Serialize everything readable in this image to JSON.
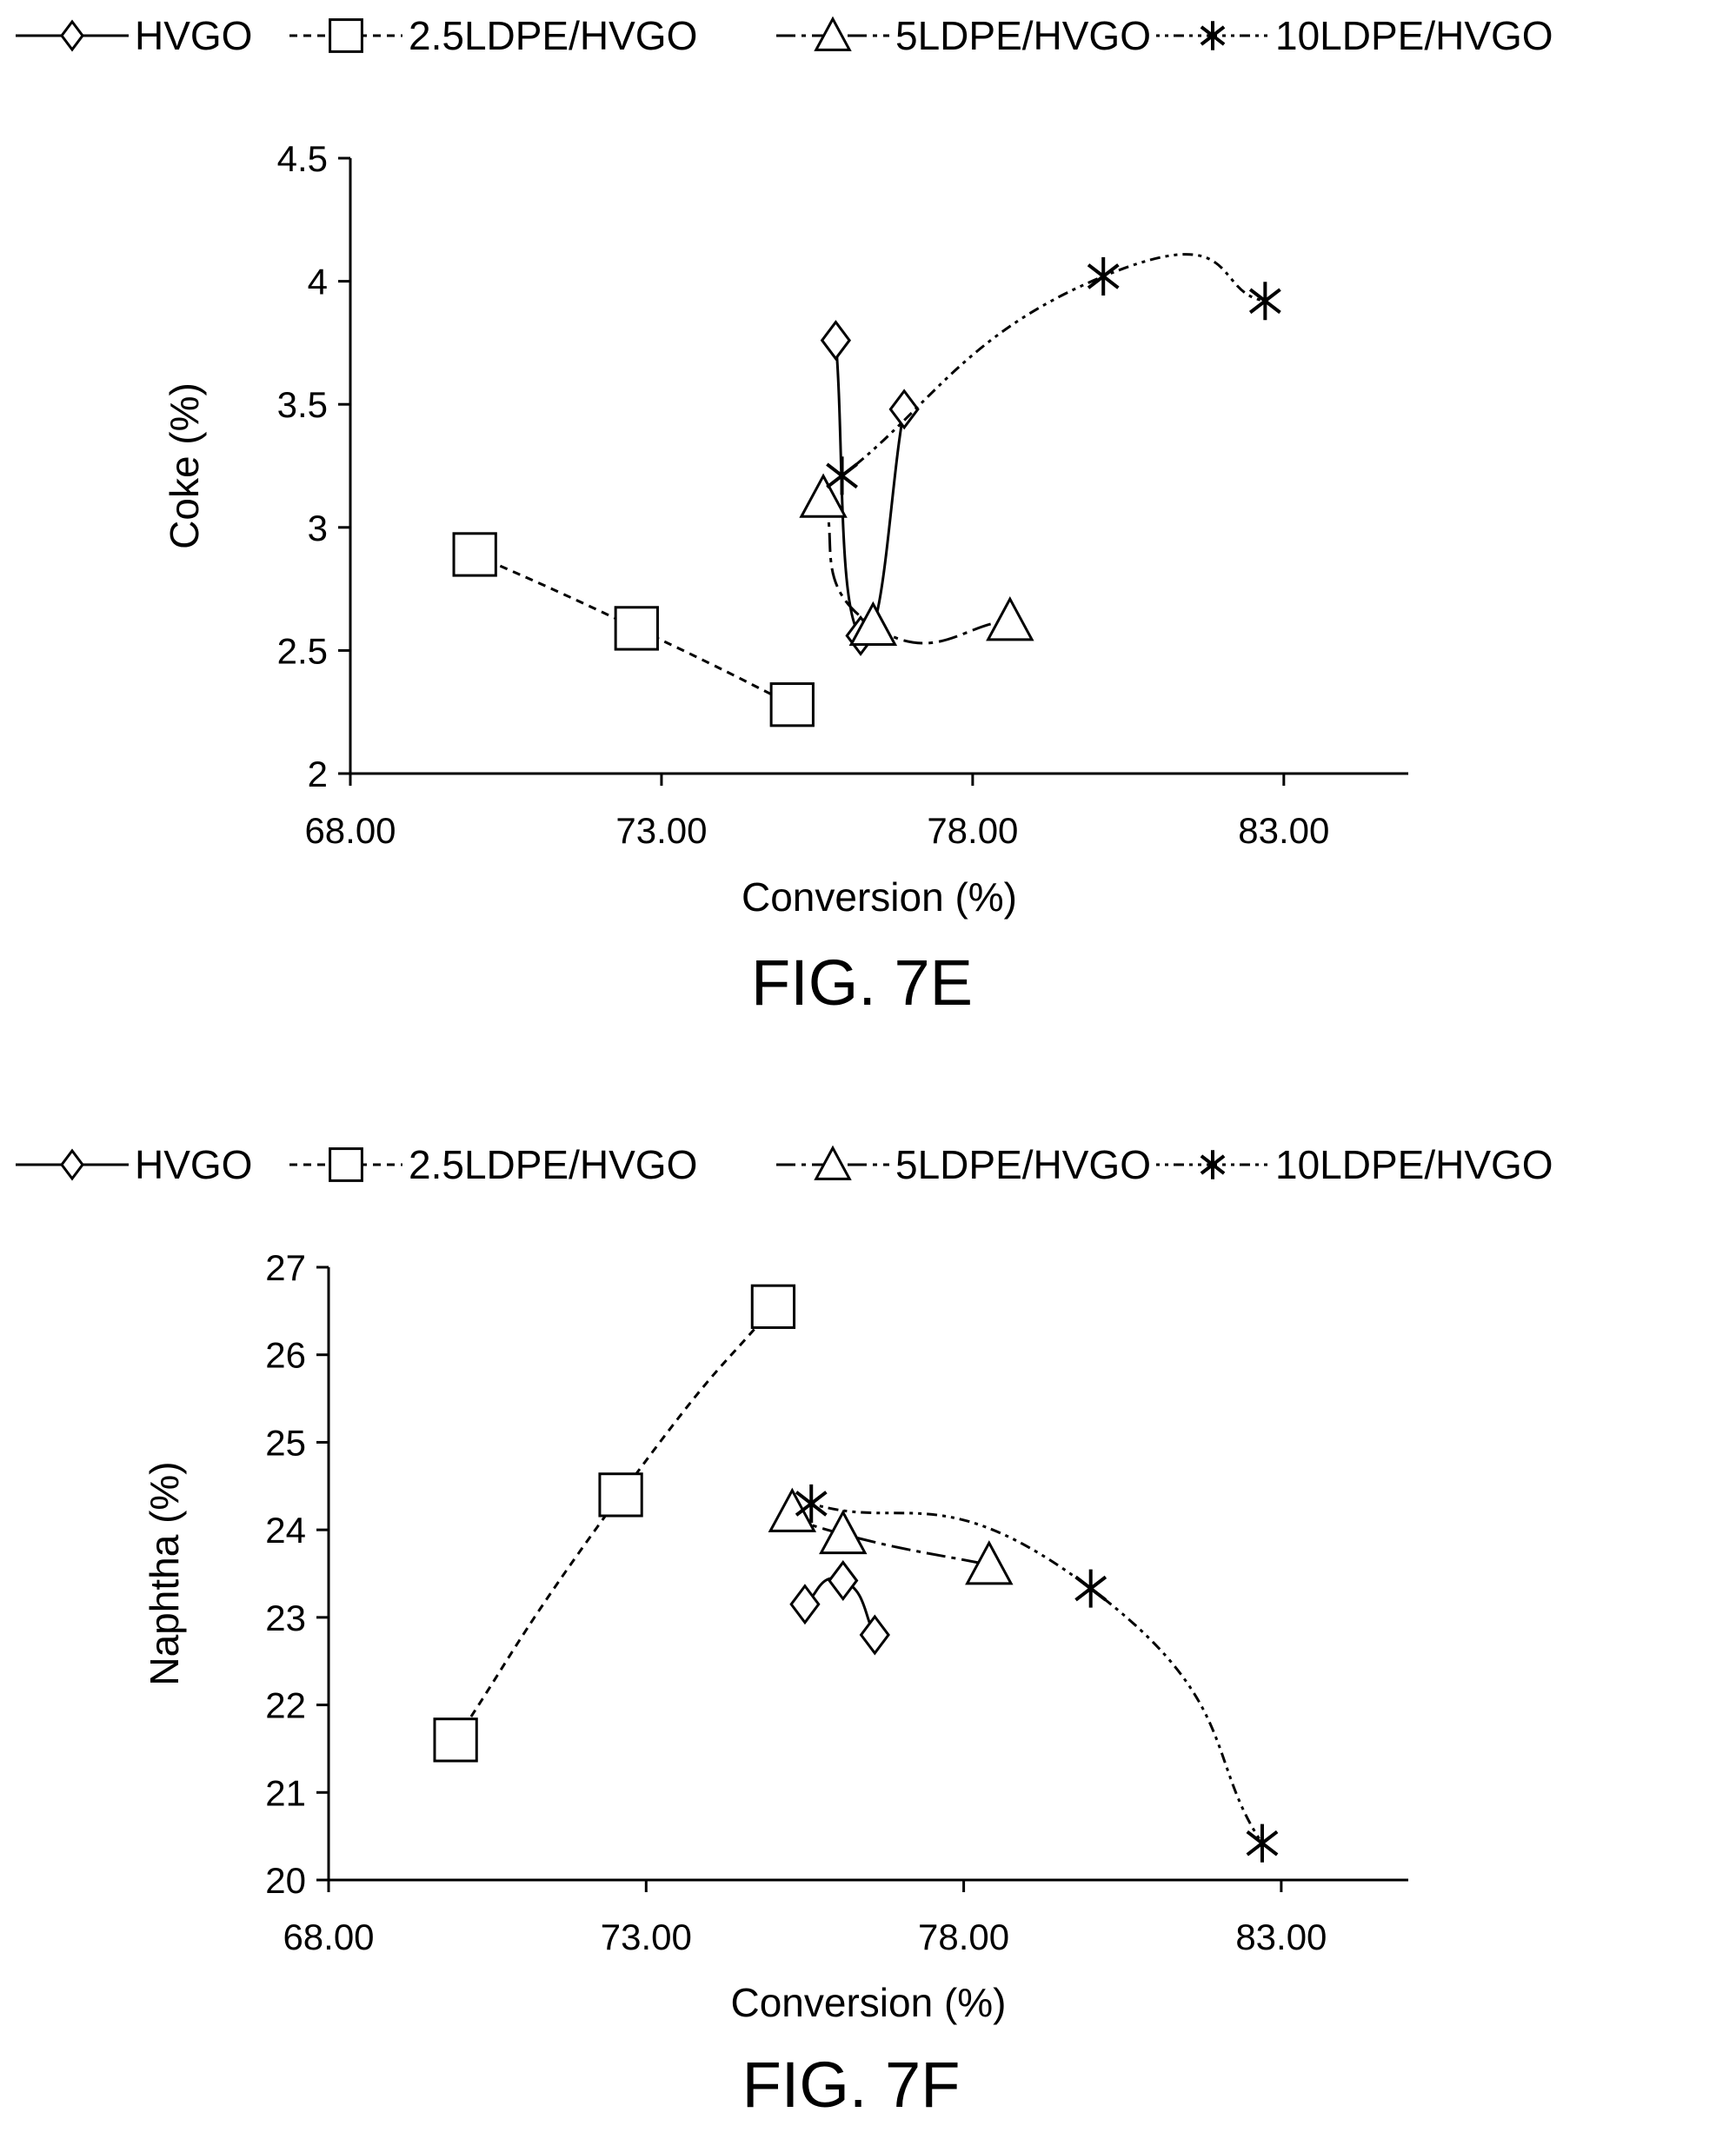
{
  "legend": [
    "HVGO",
    "2.5LDPE/HVGO",
    "5LDPE/HVGO",
    "10LDPE/HVGO"
  ],
  "chart_data": [
    {
      "type": "scatter",
      "caption": "FIG. 7E",
      "xlabel": "Conversion (%)",
      "ylabel": "Coke (%)",
      "xlim": [
        68,
        85
      ],
      "ylim": [
        2,
        4.5
      ],
      "xticks": [
        "68.00",
        "73.00",
        "78.00",
        "83.00"
      ],
      "yticks": [
        "2",
        "2.5",
        "3",
        "3.5",
        "4",
        "4.5"
      ],
      "legend_position": "top",
      "grid": false,
      "series": [
        {
          "name": "HVGO",
          "marker": "diamond",
          "line": "solid",
          "x": [
            75.8,
            76.2,
            76.9
          ],
          "y": [
            3.76,
            2.56,
            3.48
          ]
        },
        {
          "name": "2.5LDPE/HVGO",
          "marker": "square",
          "line": "dashed",
          "x": [
            70.0,
            72.6,
            75.1
          ],
          "y": [
            2.89,
            2.59,
            2.28
          ]
        },
        {
          "name": "5LDPE/HVGO",
          "marker": "triangle",
          "line": "dashdot",
          "x": [
            75.6,
            76.4,
            78.6
          ],
          "y": [
            3.12,
            2.6,
            2.62
          ]
        },
        {
          "name": "10LDPE/HVGO",
          "marker": "asterisk",
          "line": "dotted",
          "x": [
            75.9,
            80.1,
            82.7
          ],
          "y": [
            3.21,
            4.02,
            3.92
          ]
        }
      ]
    },
    {
      "type": "scatter",
      "caption": "FIG. 7F",
      "xlabel": "Conversion (%)",
      "ylabel": "Naphtha (%)",
      "xlim": [
        68,
        85
      ],
      "ylim": [
        20,
        27
      ],
      "xticks": [
        "68.00",
        "73.00",
        "78.00",
        "83.00"
      ],
      "yticks": [
        "20",
        "21",
        "22",
        "23",
        "24",
        "25",
        "26",
        "27"
      ],
      "legend_position": "top",
      "grid": false,
      "series": [
        {
          "name": "HVGO",
          "marker": "diamond",
          "line": "solid",
          "x": [
            75.5,
            76.1,
            76.6
          ],
          "y": [
            23.15,
            23.42,
            22.8
          ]
        },
        {
          "name": "2.5LDPE/HVGO",
          "marker": "square",
          "line": "dashed",
          "x": [
            70.0,
            72.6,
            75.0
          ],
          "y": [
            21.6,
            24.4,
            26.55
          ]
        },
        {
          "name": "5LDPE/HVGO",
          "marker": "triangle",
          "line": "dashdot",
          "x": [
            75.3,
            76.1,
            78.4
          ],
          "y": [
            24.2,
            23.95,
            23.6
          ]
        },
        {
          "name": "10LDPE/HVGO",
          "marker": "asterisk",
          "line": "dotted",
          "x": [
            75.6,
            80.0,
            82.7
          ],
          "y": [
            24.3,
            23.33,
            20.42
          ]
        }
      ]
    }
  ]
}
